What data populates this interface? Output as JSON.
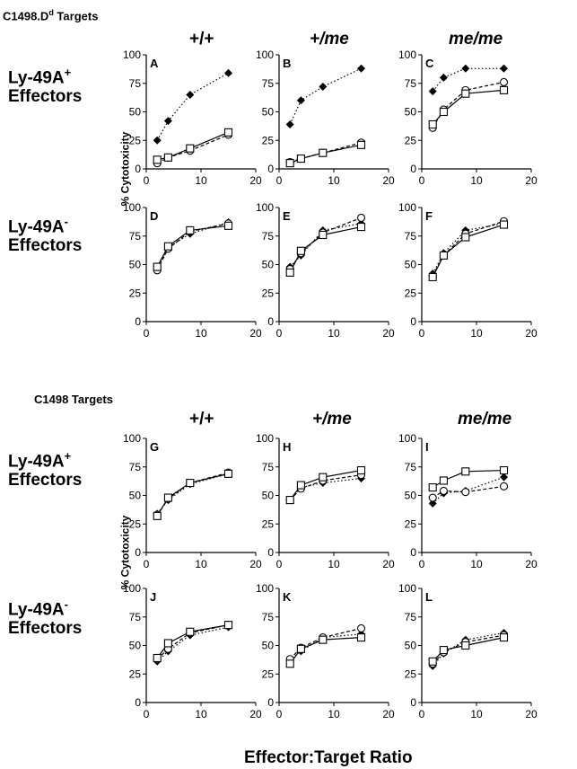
{
  "sections": [
    {
      "label": "C1498.D",
      "label_sup": "d",
      "label_rest": " Targets",
      "col_headers": [
        "+/+",
        "+/me",
        "me/me"
      ],
      "row_labels": [
        {
          "line1": "Ly-49A",
          "sup": "+",
          "line2": "Effectors"
        },
        {
          "line1": "Ly-49A",
          "sup": "-",
          "line2": "Effectors"
        }
      ],
      "ylabel": "% Cytotoxicity"
    },
    {
      "label": "C1498",
      "label_sup": "",
      "label_rest": " Targets",
      "col_headers": [
        "+/+",
        "+/me",
        "me/me"
      ],
      "row_labels": [
        {
          "line1": "Ly-49A",
          "sup": "+",
          "line2": "Effectors"
        },
        {
          "line1": "Ly-49A",
          "sup": "-",
          "line2": "Effectors"
        }
      ],
      "ylabel": "% Cytotoxicity"
    }
  ],
  "xlabel": "Effector:Target Ratio",
  "chart_data": [
    {
      "panel": "A",
      "type": "line",
      "x": [
        2,
        4,
        8,
        15
      ],
      "xlim": [
        0,
        20
      ],
      "ylim": [
        0,
        100
      ],
      "xticks": [
        0,
        10,
        20
      ],
      "yticks": [
        0,
        25,
        50,
        75,
        100
      ],
      "series": [
        {
          "marker": "filled-diamond",
          "line": "dotted",
          "values": [
            25,
            42,
            65,
            84
          ]
        },
        {
          "marker": "open-circle",
          "line": "dashed",
          "values": [
            5,
            10,
            16,
            30
          ]
        },
        {
          "marker": "open-square",
          "line": "solid",
          "values": [
            8,
            10,
            18,
            32
          ]
        }
      ]
    },
    {
      "panel": "B",
      "type": "line",
      "x": [
        2,
        4,
        8,
        15
      ],
      "xlim": [
        0,
        20
      ],
      "ylim": [
        0,
        100
      ],
      "xticks": [
        0,
        10,
        20
      ],
      "yticks": [
        0,
        25,
        50,
        75,
        100
      ],
      "series": [
        {
          "marker": "filled-diamond",
          "line": "dotted",
          "values": [
            39,
            60,
            72,
            88
          ]
        },
        {
          "marker": "open-circle",
          "line": "dashed",
          "values": [
            6,
            9,
            14,
            23
          ]
        },
        {
          "marker": "open-square",
          "line": "solid",
          "values": [
            5,
            9,
            14,
            21
          ]
        }
      ]
    },
    {
      "panel": "C",
      "type": "line",
      "x": [
        2,
        4,
        8,
        15
      ],
      "xlim": [
        0,
        20
      ],
      "ylim": [
        0,
        100
      ],
      "xticks": [
        0,
        10,
        20
      ],
      "yticks": [
        0,
        25,
        50,
        75,
        100
      ],
      "series": [
        {
          "marker": "filled-diamond",
          "line": "dotted",
          "values": [
            68,
            80,
            88,
            88
          ]
        },
        {
          "marker": "open-circle",
          "line": "dashed",
          "values": [
            36,
            52,
            69,
            76
          ]
        },
        {
          "marker": "open-square",
          "line": "solid",
          "values": [
            39,
            50,
            66,
            69
          ]
        }
      ]
    },
    {
      "panel": "D",
      "type": "line",
      "x": [
        2,
        4,
        8,
        15
      ],
      "xlim": [
        0,
        20
      ],
      "ylim": [
        0,
        100
      ],
      "xticks": [
        0,
        10,
        20
      ],
      "yticks": [
        0,
        25,
        50,
        75,
        100
      ],
      "series": [
        {
          "marker": "filled-diamond",
          "line": "dotted",
          "values": [
            47,
            65,
            77,
            87
          ]
        },
        {
          "marker": "open-circle",
          "line": "dashed",
          "values": [
            45,
            64,
            79,
            86
          ]
        },
        {
          "marker": "open-square",
          "line": "solid",
          "values": [
            48,
            66,
            80,
            84
          ]
        }
      ]
    },
    {
      "panel": "E",
      "type": "line",
      "x": [
        2,
        4,
        8,
        15
      ],
      "xlim": [
        0,
        20
      ],
      "ylim": [
        0,
        100
      ],
      "xticks": [
        0,
        10,
        20
      ],
      "yticks": [
        0,
        25,
        50,
        75,
        100
      ],
      "series": [
        {
          "marker": "filled-diamond",
          "line": "dotted",
          "values": [
            48,
            58,
            80,
            86
          ]
        },
        {
          "marker": "open-circle",
          "line": "dashed",
          "values": [
            46,
            60,
            78,
            91
          ]
        },
        {
          "marker": "open-square",
          "line": "solid",
          "values": [
            43,
            62,
            76,
            83
          ]
        }
      ]
    },
    {
      "panel": "F",
      "type": "line",
      "x": [
        2,
        4,
        8,
        15
      ],
      "xlim": [
        0,
        20
      ],
      "ylim": [
        0,
        100
      ],
      "xticks": [
        0,
        10,
        20
      ],
      "yticks": [
        0,
        25,
        50,
        75,
        100
      ],
      "series": [
        {
          "marker": "filled-diamond",
          "line": "dotted",
          "values": [
            42,
            60,
            80,
            86
          ]
        },
        {
          "marker": "open-circle",
          "line": "dashed",
          "values": [
            40,
            58,
            77,
            88
          ]
        },
        {
          "marker": "open-square",
          "line": "solid",
          "values": [
            39,
            58,
            74,
            85
          ]
        }
      ]
    },
    {
      "panel": "G",
      "type": "line",
      "x": [
        2,
        4,
        8,
        15
      ],
      "xlim": [
        0,
        20
      ],
      "ylim": [
        0,
        100
      ],
      "xticks": [
        0,
        10,
        20
      ],
      "yticks": [
        0,
        25,
        50,
        75,
        100
      ],
      "series": [
        {
          "marker": "filled-diamond",
          "line": "dotted",
          "values": [
            34,
            46,
            60,
            69
          ]
        },
        {
          "marker": "open-circle",
          "line": "dashed",
          "values": [
            33,
            47,
            61,
            70
          ]
        },
        {
          "marker": "open-square",
          "line": "solid",
          "values": [
            32,
            48,
            61,
            69
          ]
        }
      ]
    },
    {
      "panel": "H",
      "type": "line",
      "x": [
        2,
        4,
        8,
        15
      ],
      "xlim": [
        0,
        20
      ],
      "ylim": [
        0,
        100
      ],
      "xticks": [
        0,
        10,
        20
      ],
      "yticks": [
        0,
        25,
        50,
        75,
        100
      ],
      "series": [
        {
          "marker": "filled-diamond",
          "line": "dotted",
          "values": [
            46,
            57,
            61,
            65
          ]
        },
        {
          "marker": "open-circle",
          "line": "dashed",
          "values": [
            46,
            56,
            63,
            68
          ]
        },
        {
          "marker": "open-square",
          "line": "solid",
          "values": [
            46,
            59,
            66,
            72
          ]
        }
      ]
    },
    {
      "panel": "I",
      "type": "line",
      "x": [
        2,
        4,
        8,
        15
      ],
      "xlim": [
        0,
        20
      ],
      "ylim": [
        0,
        100
      ],
      "xticks": [
        0,
        10,
        20
      ],
      "yticks": [
        0,
        25,
        50,
        75,
        100
      ],
      "series": [
        {
          "marker": "filled-diamond",
          "line": "dotted",
          "values": [
            43,
            52,
            54,
            66
          ]
        },
        {
          "marker": "open-circle",
          "line": "dashed",
          "values": [
            48,
            54,
            53,
            58
          ]
        },
        {
          "marker": "open-square",
          "line": "solid",
          "values": [
            57,
            63,
            71,
            72
          ]
        }
      ]
    },
    {
      "panel": "J",
      "type": "line",
      "x": [
        2,
        4,
        8,
        15
      ],
      "xlim": [
        0,
        20
      ],
      "ylim": [
        0,
        100
      ],
      "xticks": [
        0,
        10,
        20
      ],
      "yticks": [
        0,
        25,
        50,
        75,
        100
      ],
      "series": [
        {
          "marker": "filled-diamond",
          "line": "dotted",
          "values": [
            36,
            45,
            59,
            66
          ]
        },
        {
          "marker": "open-circle",
          "line": "dashed",
          "values": [
            38,
            47,
            61,
            68
          ]
        },
        {
          "marker": "open-square",
          "line": "solid",
          "values": [
            39,
            52,
            62,
            68
          ]
        }
      ]
    },
    {
      "panel": "K",
      "type": "line",
      "x": [
        2,
        4,
        8,
        15
      ],
      "xlim": [
        0,
        20
      ],
      "ylim": [
        0,
        100
      ],
      "xticks": [
        0,
        10,
        20
      ],
      "yticks": [
        0,
        25,
        50,
        75,
        100
      ],
      "series": [
        {
          "marker": "filled-diamond",
          "line": "dotted",
          "values": [
            37,
            45,
            57,
            60
          ]
        },
        {
          "marker": "open-circle",
          "line": "dashed",
          "values": [
            38,
            48,
            57,
            65
          ]
        },
        {
          "marker": "open-square",
          "line": "solid",
          "values": [
            34,
            47,
            55,
            57
          ]
        }
      ]
    },
    {
      "panel": "L",
      "type": "line",
      "x": [
        2,
        4,
        8,
        15
      ],
      "xlim": [
        0,
        20
      ],
      "ylim": [
        0,
        100
      ],
      "xticks": [
        0,
        10,
        20
      ],
      "yticks": [
        0,
        25,
        50,
        75,
        100
      ],
      "series": [
        {
          "marker": "filled-diamond",
          "line": "dotted",
          "values": [
            32,
            43,
            55,
            61
          ]
        },
        {
          "marker": "open-circle",
          "line": "dashed",
          "values": [
            34,
            44,
            53,
            59
          ]
        },
        {
          "marker": "open-square",
          "line": "solid",
          "values": [
            36,
            46,
            50,
            57
          ]
        }
      ]
    }
  ]
}
